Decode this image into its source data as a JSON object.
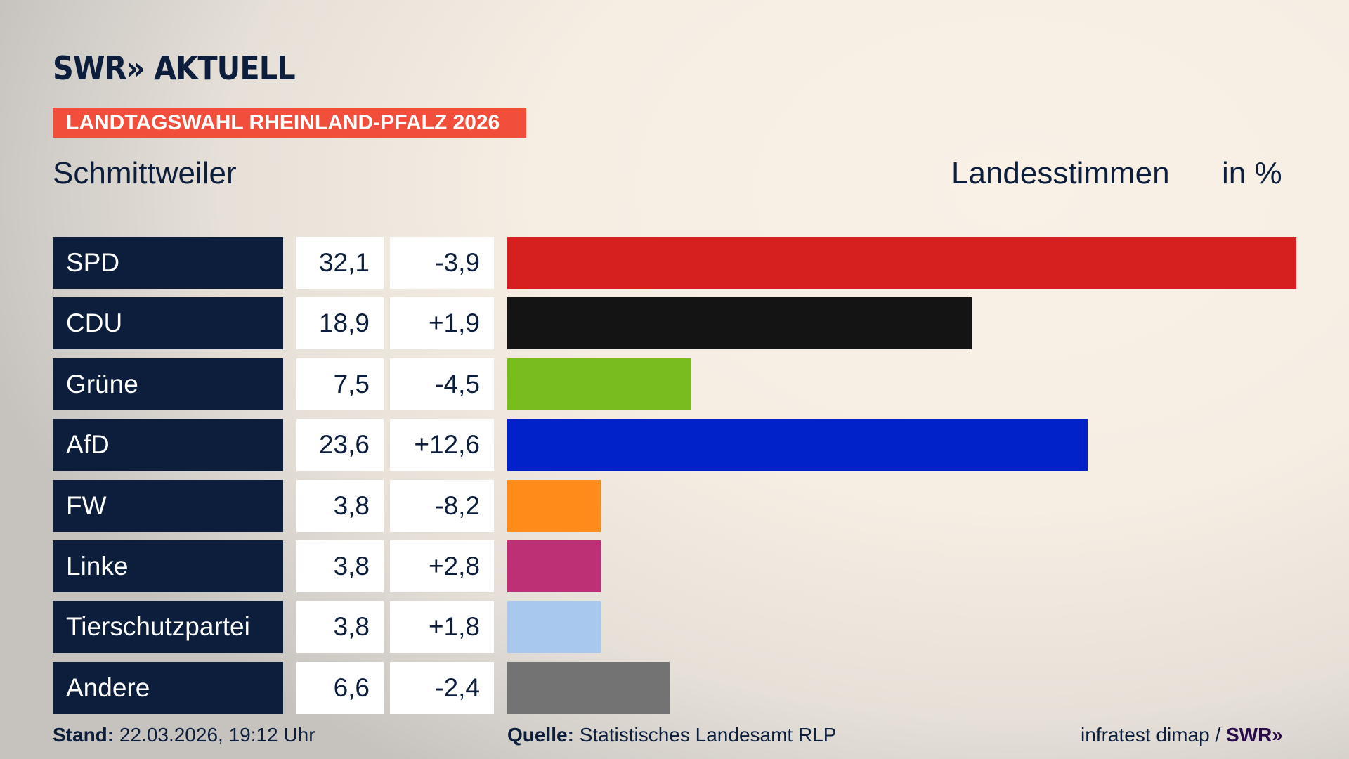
{
  "logo": "SWR» AKTUELL",
  "banner": "LANDTAGSWAHL RHEINLAND-PFALZ 2026",
  "place": "Schmittweiler",
  "subtitle": "Landesstimmen",
  "unit": "in %",
  "chart_data": {
    "type": "bar",
    "orientation": "horizontal",
    "categories": [
      "SPD",
      "CDU",
      "Grüne",
      "AfD",
      "FW",
      "Linke",
      "Tierschutzpartei",
      "Andere"
    ],
    "values": [
      32.1,
      18.9,
      7.5,
      23.6,
      3.8,
      3.8,
      3.8,
      6.6
    ],
    "value_labels": [
      "32,1",
      "18,9",
      "7,5",
      "23,6",
      "3,8",
      "3,8",
      "3,8",
      "6,6"
    ],
    "diff_labels": [
      "-3,9",
      "+1,9",
      "-4,5",
      "+12,6",
      "-8,2",
      "+2,8",
      "+1,8",
      "-2,4"
    ],
    "colors": [
      "#d62020",
      "#141414",
      "#78bc1e",
      "#0022c8",
      "#ff8c1a",
      "#bd3075",
      "#a9c8ee",
      "#737373"
    ]
  },
  "footer": {
    "stand_label": "Stand:",
    "stand_value": "22.03.2026, 19:12 Uhr",
    "source_label": "Quelle:",
    "source_value": "Statistisches Landesamt RLP",
    "credit": "infratest dimap /",
    "credit_logo": "SWR»"
  }
}
